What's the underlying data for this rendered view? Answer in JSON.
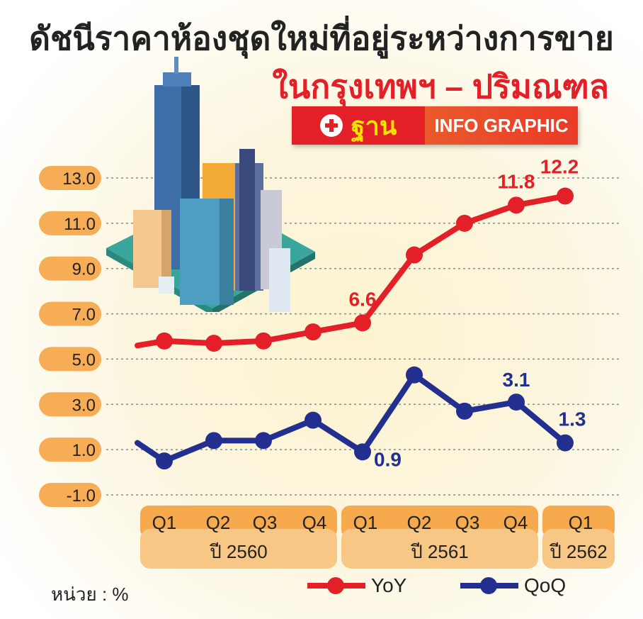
{
  "title": {
    "main": "ดัชนีราคาห้องชุดใหม่ที่อยู่ระหว่างการขาย",
    "sub": "ในกรุงเทพฯ – ปริมณฑล"
  },
  "badge": {
    "brand": "ฐาน",
    "text": "INFO GRAPHIC",
    "icon": "plus-circle-icon"
  },
  "illustration": "city-buildings-icon",
  "unit_label": "หน่วย : %",
  "legend": [
    {
      "label": "YoY",
      "color": "#e32027"
    },
    {
      "label": "QoQ",
      "color": "#232f8f"
    }
  ],
  "chart_data": {
    "type": "line",
    "yticks": [
      "13.0",
      "11.0",
      "9.0",
      "7.0",
      "5.0",
      "3.0",
      "1.0",
      "-1.0"
    ],
    "ylim": [
      -1,
      13
    ],
    "grid": true,
    "categories": [
      "Q1",
      "Q2",
      "Q3",
      "Q4",
      "Q1",
      "Q2",
      "Q3",
      "Q4",
      "Q1"
    ],
    "year_groups": [
      {
        "label": "ปี 2560",
        "span": 4
      },
      {
        "label": "ปี 2561",
        "span": 4
      },
      {
        "label": "ปี 2562",
        "span": 1
      }
    ],
    "series": [
      {
        "name": "YoY",
        "color": "#e32027",
        "values": [
          5.8,
          5.7,
          5.8,
          6.2,
          6.6,
          9.6,
          11.0,
          11.8,
          12.2
        ],
        "start_value": 5.6,
        "labels": [
          {
            "index": 4,
            "text": "6.6"
          },
          {
            "index": 7,
            "text": "11.8"
          },
          {
            "index": 8,
            "text": "12.2"
          }
        ]
      },
      {
        "name": "QoQ",
        "color": "#232f8f",
        "values": [
          0.5,
          1.4,
          1.4,
          2.3,
          0.9,
          4.3,
          2.7,
          3.1,
          1.3
        ],
        "start_value": 1.3,
        "labels": [
          {
            "index": 4,
            "text": "0.9"
          },
          {
            "index": 7,
            "text": "3.1"
          },
          {
            "index": 8,
            "text": "1.3"
          }
        ]
      }
    ]
  }
}
